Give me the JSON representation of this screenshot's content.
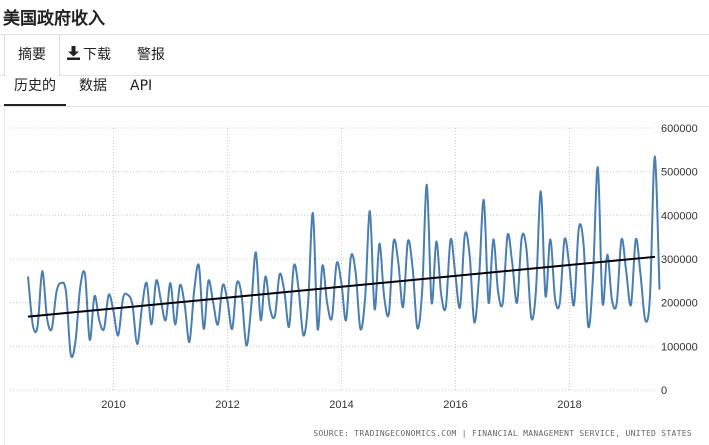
{
  "title": "美国政府收入",
  "toolbar": {
    "summary_label": "摘要",
    "download_label": "下载",
    "alert_label": "警报"
  },
  "tabs": [
    {
      "label": "历史的"
    },
    {
      "label": "数据"
    },
    {
      "label": "API"
    }
  ],
  "source": "SOURCE: TRADINGECONOMICS.COM | FINANCIAL MANAGEMENT SERVICE, UNITED STATES",
  "chart_data": {
    "type": "line",
    "x_ticks": [
      2010,
      2012,
      2014,
      2016,
      2018
    ],
    "y_ticks": [
      0,
      100000,
      200000,
      300000,
      400000,
      500000,
      600000
    ],
    "y_tick_labels": [
      "0",
      "100000",
      "200000",
      "300000",
      "400000",
      "500000",
      "600000"
    ],
    "xlim": [
      2008.5,
      2019.5
    ],
    "ylim": [
      0,
      600000
    ],
    "grid": true,
    "series": [
      {
        "color": "#4a7eb0",
        "x_start": 2008.5,
        "step": 0.0833,
        "values": [
          260000,
          150000,
          145000,
          272000,
          165000,
          140000,
          225000,
          245000,
          225000,
          82000,
          112000,
          235000,
          265000,
          115000,
          215000,
          160000,
          140000,
          218000,
          180000,
          125000,
          210000,
          218000,
          195000,
          105000,
          190000,
          245000,
          150000,
          250000,
          205000,
          160000,
          245000,
          150000,
          240000,
          195000,
          110000,
          228000,
          285000,
          140000,
          250000,
          200000,
          150000,
          240000,
          205000,
          140000,
          245000,
          215000,
          102000,
          190000,
          315000,
          160000,
          260000,
          185000,
          170000,
          265000,
          225000,
          145000,
          285000,
          230000,
          125000,
          200000,
          405000,
          140000,
          285000,
          200000,
          165000,
          290000,
          245000,
          160000,
          305000,
          270000,
          140000,
          210000,
          410000,
          185000,
          335000,
          215000,
          175000,
          340000,
          290000,
          190000,
          340000,
          280000,
          142000,
          225000,
          470000,
          200000,
          340000,
          220000,
          190000,
          345000,
          265000,
          190000,
          355000,
          310000,
          155000,
          260000,
          435000,
          200000,
          345000,
          225000,
          200000,
          355000,
          290000,
          200000,
          350000,
          320000,
          165000,
          230000,
          455000,
          215000,
          345000,
          210000,
          200000,
          345000,
          285000,
          195000,
          370000,
          335000,
          145000,
          260000,
          510000,
          200000,
          310000,
          205000,
          200000,
          345000,
          270000,
          195000,
          345000,
          265000,
          160000,
          215000,
          535000,
          230000
        ]
      },
      {
        "color": "#000000",
        "x": [
          2008.5,
          2019.5
        ],
        "values": [
          168000,
          305000
        ]
      }
    ]
  }
}
